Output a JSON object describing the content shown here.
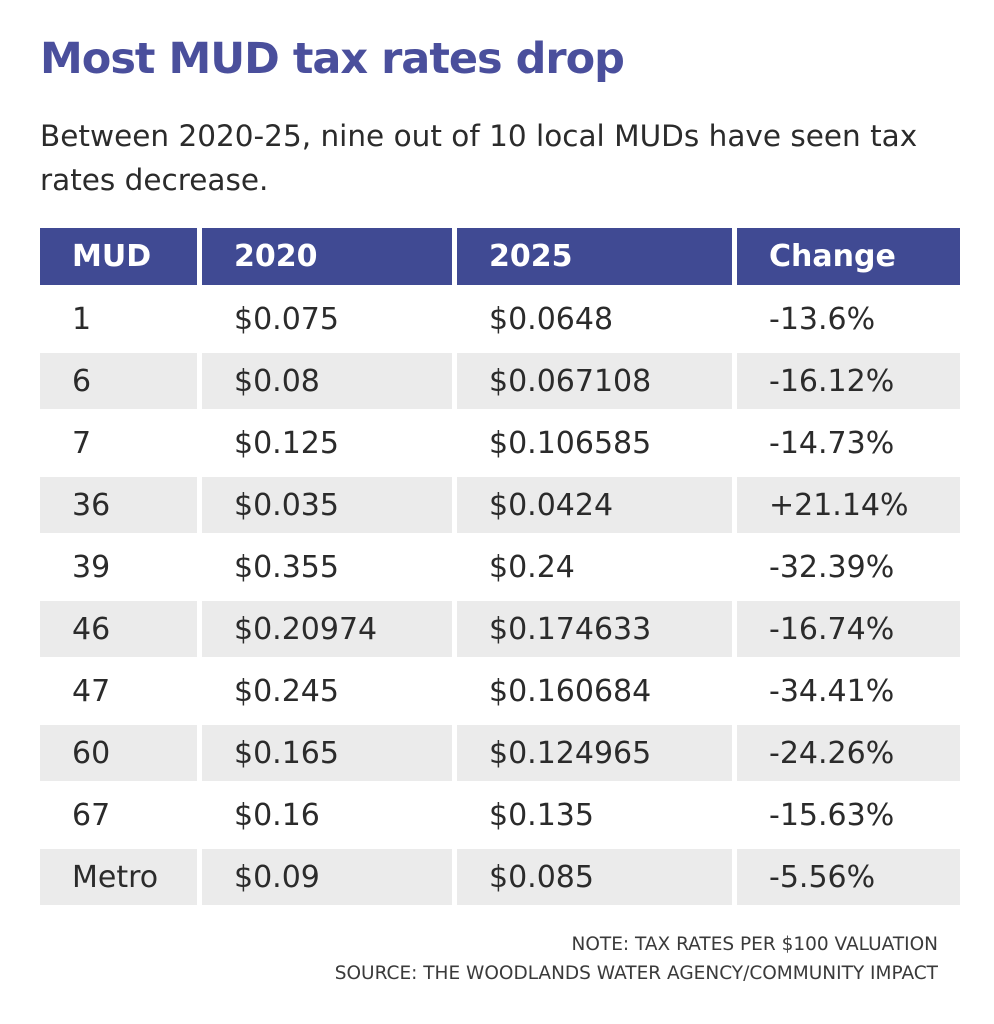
{
  "title": "Most MUD tax rates drop",
  "subtitle": "Between 2020-25, nine out of 10 local MUDs have seen tax rates decrease.",
  "colors": {
    "header": "#404a93",
    "title": "#4a4f9c",
    "shaded_row": "#ebebeb"
  },
  "chart_data": {
    "type": "table",
    "columns": [
      "MUD",
      "2020",
      "2025",
      "Change"
    ],
    "rows": [
      [
        "1",
        "$0.075",
        "$0.0648",
        "-13.6%"
      ],
      [
        "6",
        "$0.08",
        "$0.067108",
        "-16.12%"
      ],
      [
        "7",
        "$0.125",
        "$0.106585",
        "-14.73%"
      ],
      [
        "36",
        "$0.035",
        "$0.0424",
        "+21.14%"
      ],
      [
        "39",
        "$0.355",
        "$0.24",
        "-32.39%"
      ],
      [
        "46",
        "$0.20974",
        "$0.174633",
        "-16.74%"
      ],
      [
        "47",
        "$0.245",
        "$0.160684",
        "-34.41%"
      ],
      [
        "60",
        "$0.165",
        "$0.124965",
        "-24.26%"
      ],
      [
        "67",
        "$0.16",
        "$0.135",
        "-15.63%"
      ],
      [
        "Metro",
        "$0.09",
        "$0.085",
        "-5.56%"
      ]
    ]
  },
  "note": "NOTE: TAX RATES PER $100 VALUATION",
  "source": "SOURCE: THE WOODLANDS WATER AGENCY/COMMUNITY IMPACT"
}
